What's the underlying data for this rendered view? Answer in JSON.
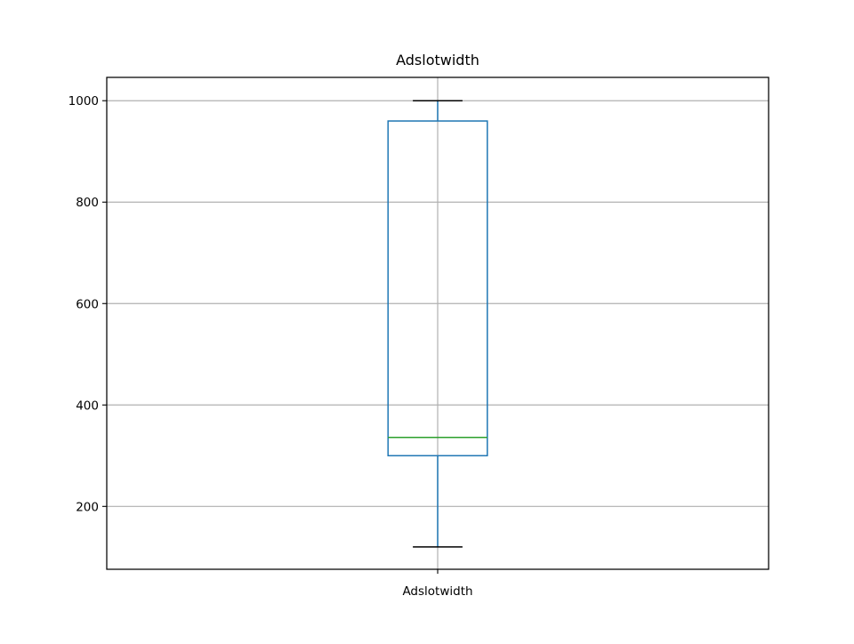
{
  "chart_data": {
    "type": "box",
    "title": "Adslotwidth",
    "xlabel": "",
    "ylabel": "",
    "categories": [
      "Adslotwidth"
    ],
    "boxes": [
      {
        "name": "Adslotwidth",
        "whisker_low": 120,
        "q1": 300,
        "median": 336,
        "q3": 960,
        "whisker_high": 1000
      }
    ],
    "ylim": [
      76,
      1046
    ],
    "yticks": [
      200,
      400,
      600,
      800,
      1000
    ],
    "ytick_labels": [
      "200",
      "400",
      "600",
      "800",
      "1000"
    ],
    "grid": true,
    "colors": {
      "box": "#1f77b4",
      "median": "#2ca02c",
      "whisker_cap": "#000000",
      "grid": "#b0b0b0",
      "axes": "#000000"
    }
  }
}
